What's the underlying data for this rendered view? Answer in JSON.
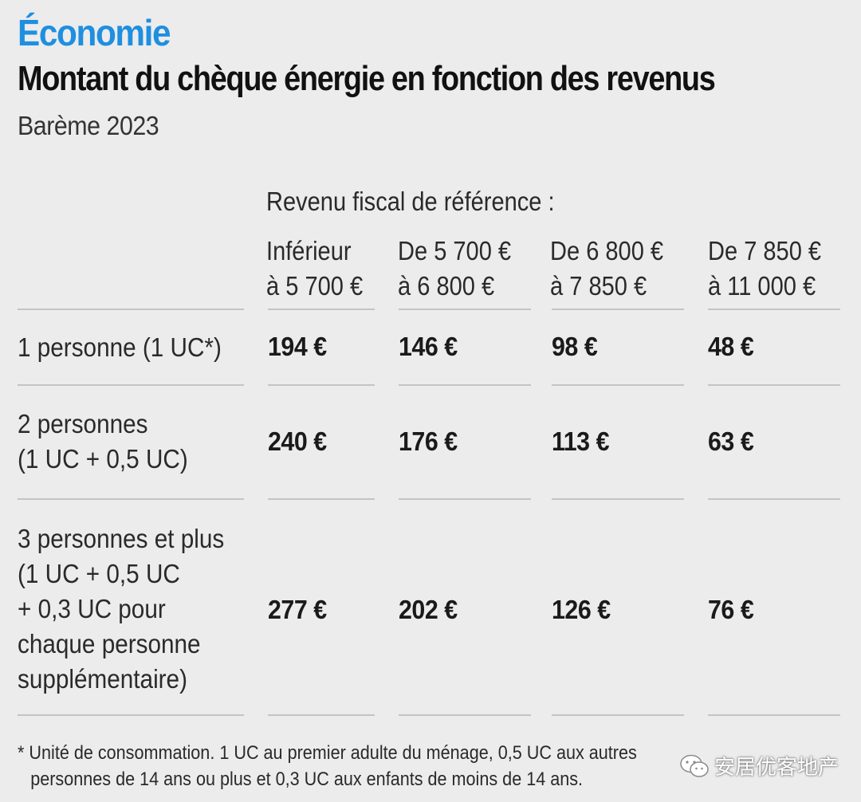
{
  "kicker": "Économie",
  "title": "Montant du chèque énergie en fonction des revenus",
  "subtitle": "Barème 2023",
  "chart_data": {
    "type": "table",
    "group_header": "Revenu fiscal de référence :",
    "columns": [
      [
        "Inférieur",
        "à 5 700 €"
      ],
      [
        "De 5 700 €",
        "à 6 800 €"
      ],
      [
        "De 6 800 €",
        "à 7 850 €"
      ],
      [
        "De 7 850 €",
        "à 11 000 €"
      ]
    ],
    "rows": [
      {
        "label": [
          "1 personne (1 UC*)"
        ],
        "values": [
          "194 €",
          "146 €",
          "98 €",
          "48 €"
        ]
      },
      {
        "label": [
          "2 personnes",
          "(1 UC + 0,5 UC)"
        ],
        "values": [
          "240 €",
          "176 €",
          "113 €",
          "63 €"
        ]
      },
      {
        "label": [
          "3 personnes et plus",
          "(1 UC + 0,5 UC",
          "+ 0,3 UC pour",
          "chaque personne",
          "supplémentaire)"
        ],
        "values": [
          "277 €",
          "202 €",
          "126 €",
          "76 €"
        ]
      }
    ]
  },
  "footnote": [
    "* Unité de consommation. 1 UC au premier adulte du ménage, 0,5 UC aux autres",
    "personnes de 14 ans ou plus et 0,3 UC aux enfants de moins de 14 ans."
  ],
  "watermark": {
    "text": "安居优客地产",
    "icon": "wechat-icon"
  },
  "colors": {
    "accent": "#1f8fe0",
    "background": "#ececec",
    "rule": "#c4c4c4"
  }
}
